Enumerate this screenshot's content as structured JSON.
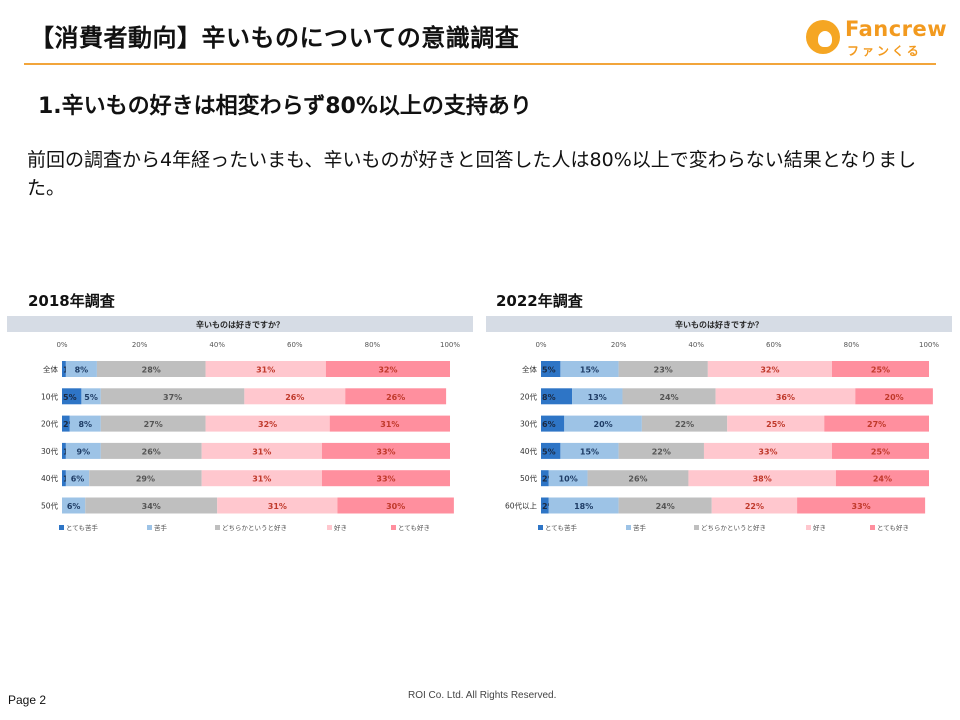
{
  "header": {
    "title": "【消費者動向】辛いものについての意識調査"
  },
  "logo": {
    "brand": "Fancrew",
    "kana": "ファンくる"
  },
  "section_title": "1.辛いもの好きは相変わらず80%以上の支持あり",
  "description": "前回の調査から4年経ったいまも、辛いものが好きと回答した人は80%以上で変わらない結果となりました。",
  "footer": {
    "page": "Page 2",
    "copyright": "ROI Co. Ltd. All Rights Reserved."
  },
  "colors": {
    "very_dislike": "#2e75c6",
    "dislike": "#9dc3e6",
    "neutral": "#bfbfbf",
    "like": "#ffc7ce",
    "very_like": "#ff8f9e",
    "accent": "#f2a53b"
  },
  "chart_data": [
    {
      "type": "bar",
      "label": "2018年調査",
      "title": "辛いものは好きですか？",
      "xlim": [
        0,
        100
      ],
      "ticks": [
        "0%",
        "20%",
        "40%",
        "60%",
        "80%",
        "100%"
      ],
      "categories": [
        "全体",
        "10代",
        "20代",
        "30代",
        "40代",
        "50代"
      ],
      "series": [
        {
          "name": "とても苦手",
          "values": [
            1,
            5,
            2,
            1,
            1,
            0
          ]
        },
        {
          "name": "苦手",
          "values": [
            8,
            5,
            8,
            9,
            6,
            6
          ]
        },
        {
          "name": "どちらかというと好き",
          "values": [
            28,
            37,
            27,
            26,
            29,
            34
          ]
        },
        {
          "name": "好き",
          "values": [
            31,
            26,
            32,
            31,
            31,
            31
          ]
        },
        {
          "name": "とても好き",
          "values": [
            32,
            26,
            31,
            33,
            33,
            30
          ]
        }
      ],
      "legend": "bottom"
    },
    {
      "type": "bar",
      "label": "2022年調査",
      "title": "辛いものは好きですか？",
      "xlim": [
        0,
        100
      ],
      "ticks": [
        "0%",
        "20%",
        "40%",
        "60%",
        "80%",
        "100%"
      ],
      "categories": [
        "全体",
        "20代",
        "30代",
        "40代",
        "50代",
        "60代以上"
      ],
      "series": [
        {
          "name": "とても苦手",
          "values": [
            5,
            8,
            6,
            5,
            2,
            2
          ]
        },
        {
          "name": "苦手",
          "values": [
            15,
            13,
            20,
            15,
            10,
            18
          ]
        },
        {
          "name": "どちらかというと好き",
          "values": [
            23,
            24,
            22,
            22,
            26,
            24
          ]
        },
        {
          "name": "好き",
          "values": [
            32,
            36,
            25,
            33,
            38,
            22
          ]
        },
        {
          "name": "とても好き",
          "values": [
            25,
            20,
            27,
            25,
            24,
            33
          ]
        }
      ],
      "legend": "bottom"
    }
  ]
}
